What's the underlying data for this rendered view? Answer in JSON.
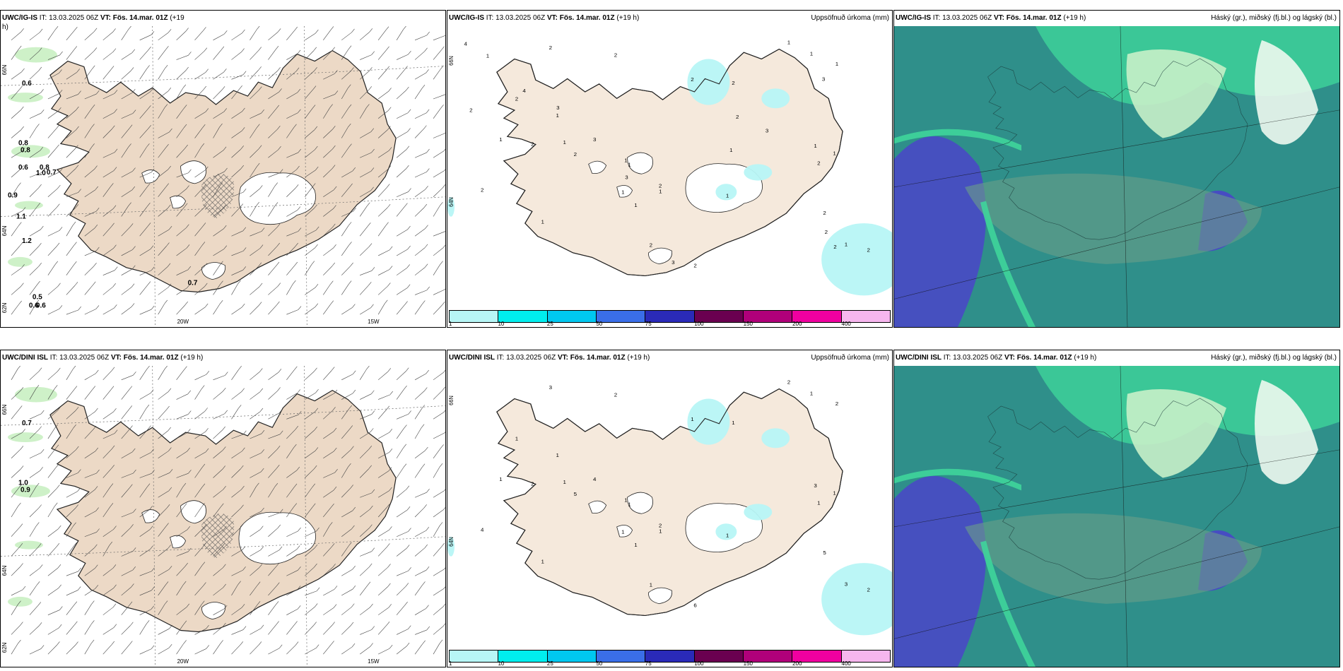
{
  "colors": {
    "land": "#f5e9dc",
    "land_wind": "#ecd9c6",
    "glacier": "#ffffff",
    "coast": "#222222",
    "precip": "#b7f6f6",
    "green_light": "#c9efc2",
    "cloud_high": "#2f8f8a",
    "cloud_mid": "#6a9e88",
    "cloud_low": "#4a45c8",
    "cloud_green": "#3fd59a",
    "cloud_pale": "#c8f0c8"
  },
  "rows": [
    {
      "id": "ig",
      "panels": [
        {
          "kind": "wind",
          "model": "UWC/IG-IS",
          "it": "IT: 13.03.2025 06Z",
          "vt_label": "VT:",
          "vt": "Fös. 14.mar. 01Z",
          "lead": "(+19",
          "lead2": "h)",
          "lon_labels": [
            "20W",
            "15W"
          ],
          "lat_labels": [
            "66N",
            "64N",
            "62N"
          ],
          "values": [
            "0.6",
            "0.8",
            "0.8",
            "0.6",
            "0.8",
            "1.0",
            "0.7",
            "0.9",
            "1.1",
            "1.2",
            "0.7",
            "0.5",
            "0.6",
            "0.6"
          ]
        },
        {
          "kind": "precip",
          "model": "UWC/IG-IS",
          "it": "IT: 13.03.2025 06Z",
          "vt_label": "VT:",
          "vt": "Fös. 14.mar. 01Z",
          "lead": "(+19 h)",
          "right_title": "Uppsöfnuð úrkoma (mm)",
          "lat_labels": [
            "66N",
            "64N"
          ],
          "values": [
            "1",
            "1",
            "1",
            "2",
            "1",
            "2",
            "2",
            "1",
            "1",
            "2",
            "1",
            "1",
            "1",
            "2",
            "2",
            "2",
            "1",
            "1",
            "1",
            "2",
            "3",
            "2",
            "2",
            "2",
            "2",
            "1",
            "2",
            "1",
            "1",
            "1",
            "2",
            "2",
            "3",
            "4",
            "3",
            "4",
            "3",
            "3",
            "2",
            "2",
            "2",
            "1",
            "1",
            "3"
          ],
          "colorbar": {
            "colors": [
              "#b7f6f6",
              "#00eeee",
              "#00c8f0",
              "#3a6ee8",
              "#2a2ab8",
              "#6a0050",
              "#b0007a",
              "#f000a0",
              "#f6b6ee"
            ],
            "ticks": [
              "1",
              "10",
              "25",
              "50",
              "75",
              "100",
              "150",
              "200",
              "400"
            ]
          }
        },
        {
          "kind": "cloud",
          "model": "UWC/IG-IS",
          "it": "IT: 13.03.2025 06Z",
          "vt_label": "VT:",
          "vt": "Fös. 14.mar. 01Z",
          "lead": "(+19 h)",
          "right_title": "Háský (gr.), miðský (fj.bl.) og lágský (bl.)"
        }
      ]
    },
    {
      "id": "dini",
      "panels": [
        {
          "kind": "wind",
          "model": "UWC/DINI ISL",
          "it": "IT: 13.03.2025 06Z",
          "vt_label": "VT:",
          "vt": "Fös. 14.mar. 01Z",
          "lead": "(+19 h)",
          "lead2": "",
          "lon_labels": [
            "20W",
            "15W"
          ],
          "lat_labels": [
            "66N",
            "64N",
            "62N"
          ],
          "values": [
            "0.7",
            "1.0",
            "0.9"
          ]
        },
        {
          "kind": "precip",
          "model": "UWC/DINI ISL",
          "it": "IT: 13.03.2025 06Z",
          "vt_label": "VT:",
          "vt": "Fös. 14.mar. 01Z",
          "lead": "(+19 h)",
          "right_title": "Uppsöfnuð úrkoma (mm)",
          "lat_labels": [
            "66N",
            "64N"
          ],
          "values": [
            "1",
            "1",
            "1",
            "1",
            "1",
            "2",
            "1",
            "2",
            "1",
            "1",
            "1",
            "2",
            "1",
            "2",
            "2",
            "1",
            "1",
            "1",
            "1",
            "2",
            "4",
            "6",
            "4",
            "5",
            "5",
            "3",
            "3",
            "3",
            "1",
            "1",
            "1"
          ],
          "colorbar": {
            "colors": [
              "#b7f6f6",
              "#00eeee",
              "#00c8f0",
              "#3a6ee8",
              "#2a2ab8",
              "#6a0050",
              "#b0007a",
              "#f000a0",
              "#f6b6ee"
            ],
            "ticks": [
              "1",
              "10",
              "25",
              "50",
              "75",
              "100",
              "150",
              "200",
              "400"
            ]
          }
        },
        {
          "kind": "cloud",
          "model": "UWC/DINI ISL",
          "it": "IT: 13.03.2025 06Z",
          "vt_label": "VT:",
          "vt": "Fös. 14.mar. 01Z",
          "lead": "(+19 h)",
          "right_title": "Háský (gr.), miðský (fj.bl.) og lágský (bl.)"
        }
      ]
    }
  ]
}
